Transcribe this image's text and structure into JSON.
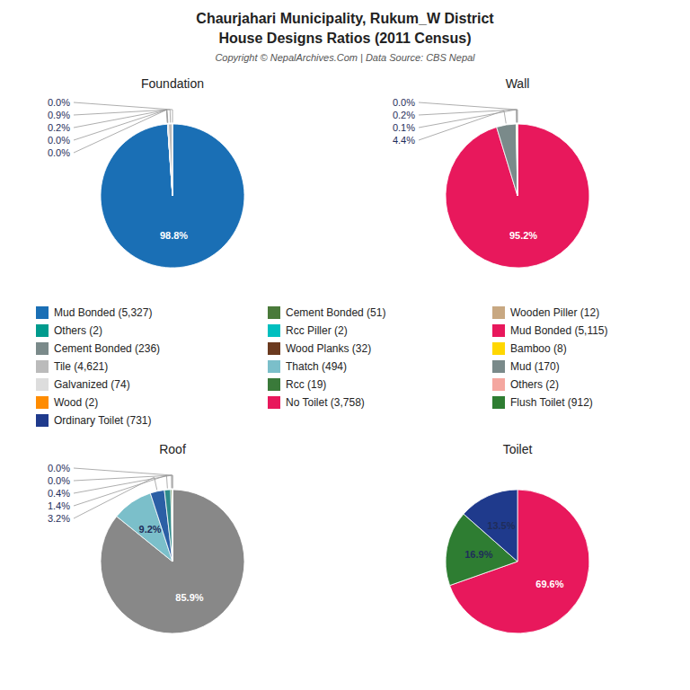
{
  "title": "Chaurjahari Municipality, Rukum_W District",
  "subtitle": "House Designs Ratios (2011 Census)",
  "annotations": [
    "Copyright © NepalArchives.Com | Data Source: CBS Nepal"
  ],
  "legend_entries": [
    {
      "name": "Mud Bonded (5,327)",
      "color": "#1A6FB5"
    },
    {
      "name": "Others (2)",
      "color": "#009B8D"
    },
    {
      "name": "Cement Bonded (236)",
      "color": "#7A8A8A"
    },
    {
      "name": "Tile (4,621)",
      "color": "#BBBBBB"
    },
    {
      "name": "Galvanized (74)",
      "color": "#DDDDDD"
    },
    {
      "name": "Wood (2)",
      "color": "#FF8C00"
    },
    {
      "name": "Ordinary Toilet (731)",
      "color": "#1F3A8C"
    },
    {
      "name": "Cement Bonded (51)",
      "color": "#4A7A3A"
    },
    {
      "name": "Rcc Piller (2)",
      "color": "#00BFBF"
    },
    {
      "name": "Wood Planks (32)",
      "color": "#6B3A1F"
    },
    {
      "name": "Thatch (494)",
      "color": "#7BBFCA"
    },
    {
      "name": "Rcc (19)",
      "color": "#3A7A3A"
    },
    {
      "name": "No Toilet (3,758)",
      "color": "#E8185C"
    },
    {
      "name": "Wooden Piller (12)",
      "color": "#C8A882"
    },
    {
      "name": "Mud Bonded (5,115)",
      "color": "#E8185C"
    },
    {
      "name": "Bamboo (8)",
      "color": "#FFD700"
    },
    {
      "name": "Mud (170)",
      "color": "#7A8A8A"
    },
    {
      "name": "Others (2)",
      "color": "#F4A7A0"
    },
    {
      "name": "Flush Toilet (912)",
      "color": "#2E7D32"
    }
  ],
  "chart_data": [
    {
      "type": "pie",
      "title": "Foundation",
      "values": [
        98.8,
        0.0,
        0.0,
        0.2,
        0.9,
        0.0
      ],
      "value_labels": [
        "98.8%",
        "0.0%",
        "0.0%",
        "0.2%",
        "0.9%",
        "0.0%"
      ],
      "colors": [
        "#1A6FB5",
        "#009B8D",
        "#4A7A3A",
        "#888888",
        "#BBBBBB",
        "#FF8C00"
      ],
      "data_labels": true
    },
    {
      "type": "pie",
      "title": "Wall",
      "values": [
        95.2,
        4.4,
        0.1,
        0.2,
        0.0
      ],
      "value_labels": [
        "95.2%",
        "4.4%",
        "0.1%",
        "0.2%",
        "0.0%"
      ],
      "colors": [
        "#E8185C",
        "#7A8A8A",
        "#FFD700",
        "#C8A882",
        "#F4A7A0"
      ],
      "data_labels": true
    },
    {
      "type": "pie",
      "title": "Roof",
      "values": [
        85.9,
        9.2,
        3.2,
        1.4,
        0.4,
        0.0,
        0.0
      ],
      "value_labels": [
        "85.9%",
        "9.2%",
        "3.2%",
        "1.4%",
        "0.4%",
        "0.0%",
        "0.0%"
      ],
      "colors": [
        "#888888",
        "#7BBFCA",
        "#2B5FA5",
        "#2E8B8B",
        "#4A7A3A",
        "#1A6FB5",
        "#009B8D"
      ],
      "data_labels": true
    },
    {
      "type": "pie",
      "title": "Toilet",
      "values": [
        69.6,
        16.9,
        13.5
      ],
      "value_labels": [
        "69.6%",
        "16.9%",
        "13.5%"
      ],
      "colors": [
        "#E8185C",
        "#2E7D32",
        "#1F3A8C"
      ],
      "data_labels": true
    }
  ]
}
